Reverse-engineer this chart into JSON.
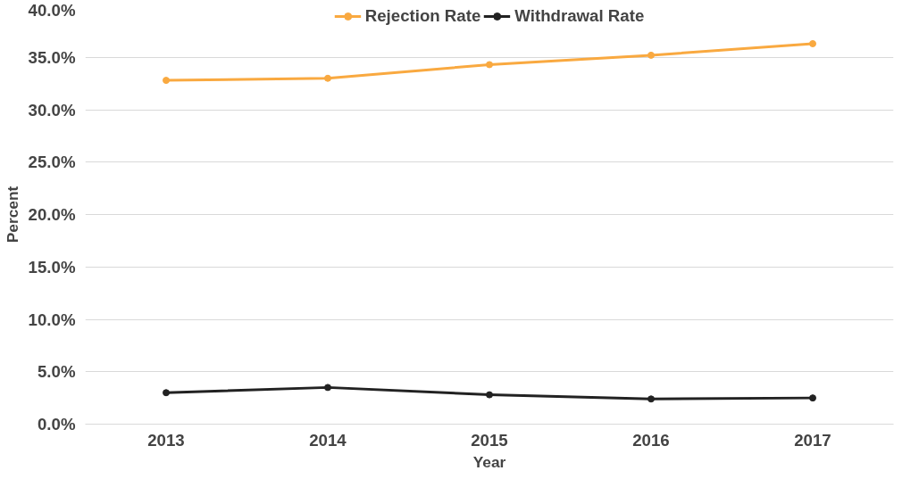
{
  "chart_data": {
    "type": "line",
    "xlabel": "Year",
    "ylabel": "Percent",
    "categories": [
      "2013",
      "2014",
      "2015",
      "2016",
      "2017"
    ],
    "series": [
      {
        "name": "Rejection Rate",
        "color": "#f9a940",
        "values": [
          32.8,
          33.0,
          34.3,
          35.2,
          36.3
        ]
      },
      {
        "name": "Withdrawal Rate",
        "color": "#222222",
        "values": [
          3.0,
          3.5,
          2.8,
          2.4,
          2.5
        ]
      }
    ],
    "ylim": [
      0,
      40
    ],
    "yticks": [
      {
        "value": 0,
        "label": "0.0%"
      },
      {
        "value": 5,
        "label": "5.0%"
      },
      {
        "value": 10,
        "label": "10.0%"
      },
      {
        "value": 15,
        "label": "15.0%"
      },
      {
        "value": 20,
        "label": "20.0%"
      },
      {
        "value": 25,
        "label": "25.0%"
      },
      {
        "value": 30,
        "label": "30.0%"
      },
      {
        "value": 35,
        "label": "35.0%"
      },
      {
        "value": 40,
        "label": "40.0%"
      }
    ],
    "grid": "y",
    "legend": "top",
    "marker": "circle",
    "line_style": "solid"
  }
}
